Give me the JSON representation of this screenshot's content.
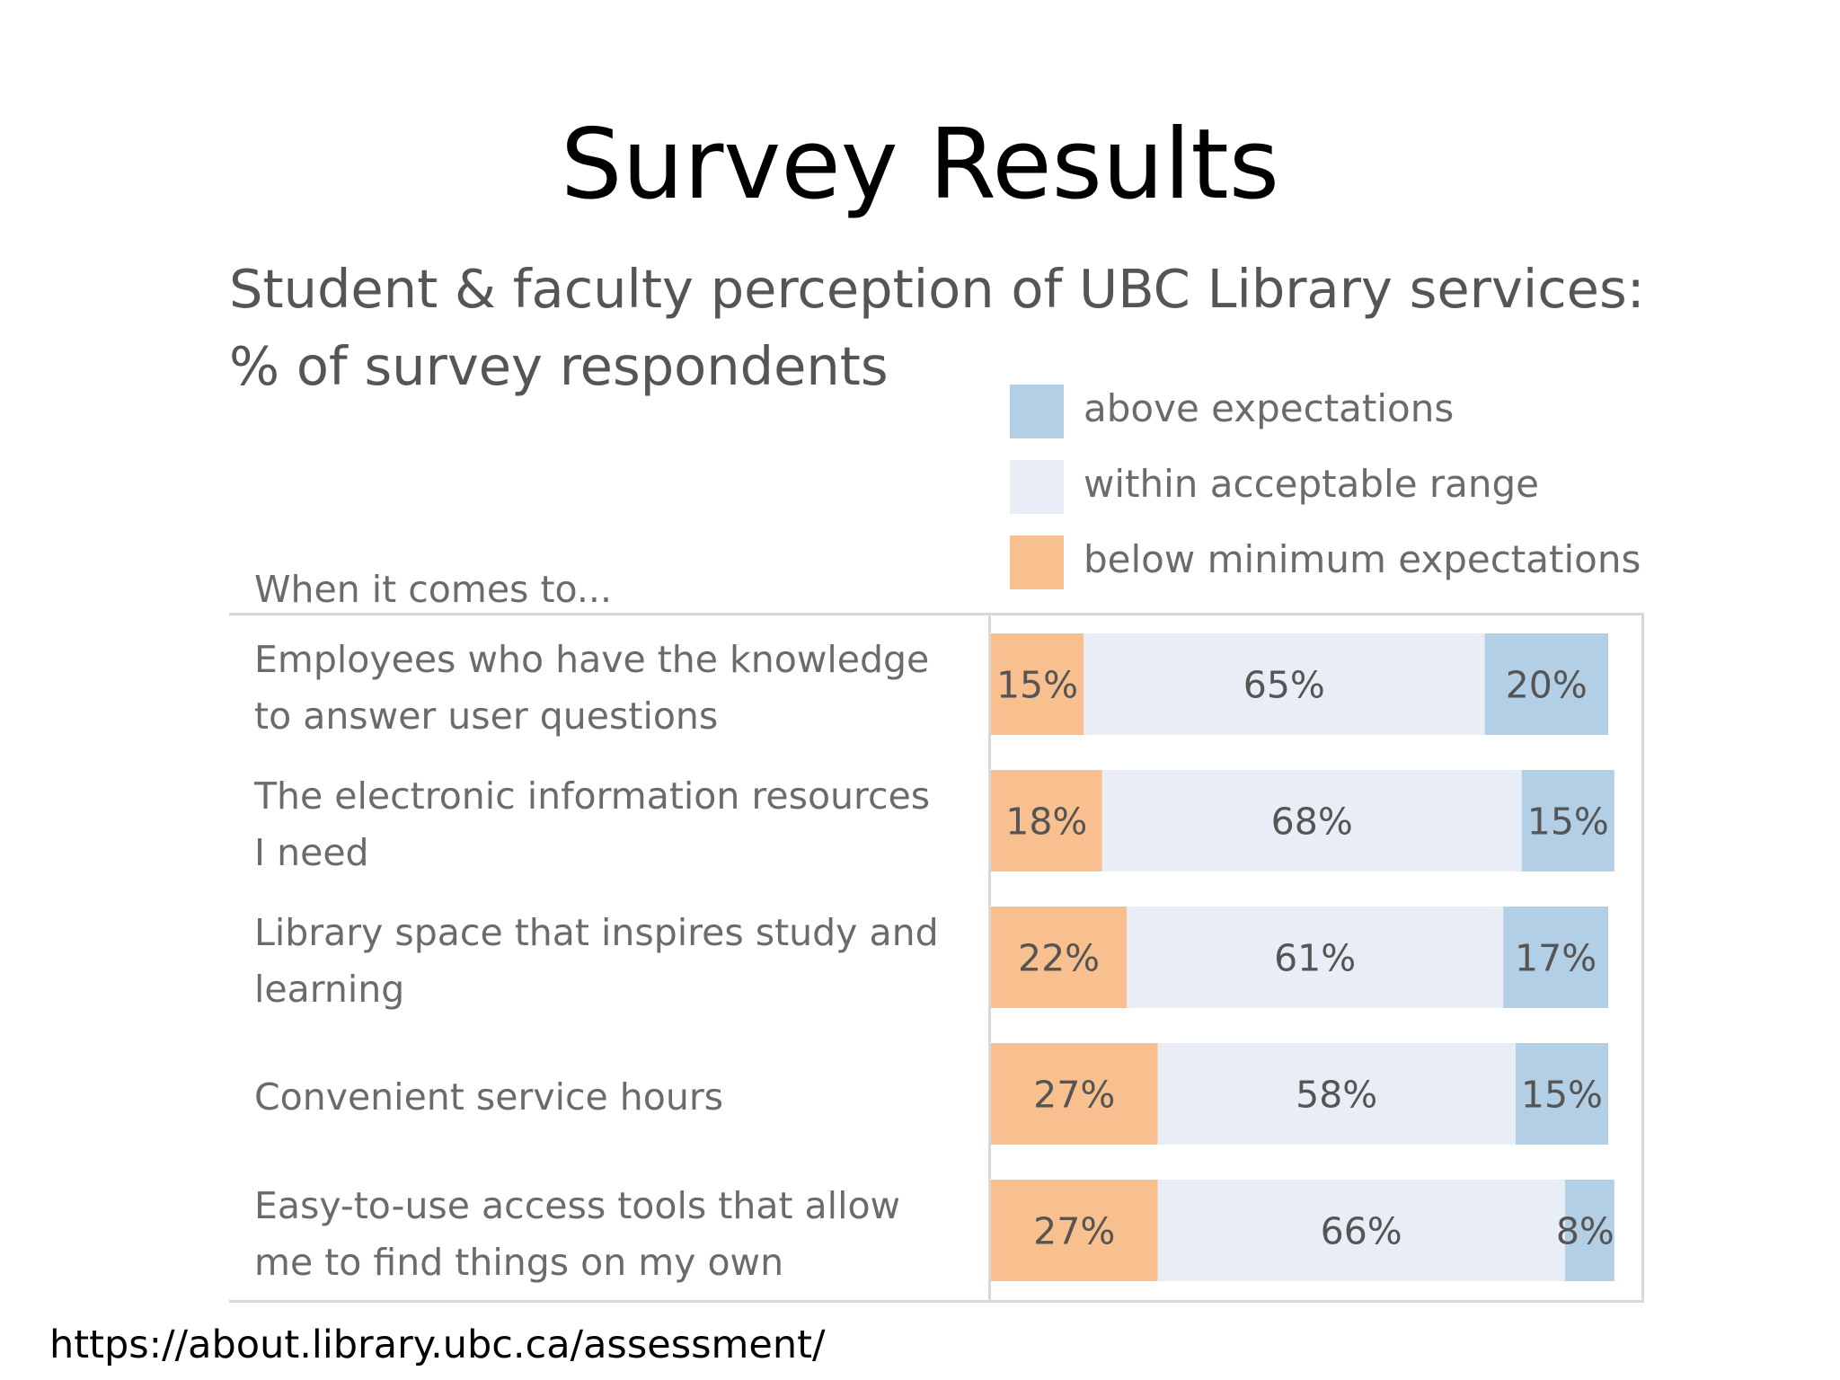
{
  "slide": {
    "title": "Survey Results",
    "source_url": "https://about.library.ubc.ca/assessment/"
  },
  "chart_data": {
    "type": "bar",
    "stacked": true,
    "orientation": "horizontal",
    "title_line1": "Student & faculty perception of UBC Library services:",
    "title_line2": "% of survey respondents",
    "row_header": "When it comes to...",
    "value_format": "percent",
    "xlim": [
      0,
      100
    ],
    "grid": false,
    "legend_position": "top-right",
    "legend": [
      {
        "key": "above",
        "label": "above expectations",
        "color": "#b3cfe6"
      },
      {
        "key": "within",
        "label": "within acceptable range",
        "color": "#e9edf6"
      },
      {
        "key": "below",
        "label": "below minimum expectations",
        "color": "#f7c08e"
      }
    ],
    "categories": [
      {
        "line1": "Employees who have the knowledge",
        "line2": "to answer user questions"
      },
      {
        "line1": "The electronic information resources",
        "line2": "I need"
      },
      {
        "line1": "Library space that inspires study and",
        "line2": "learning"
      },
      {
        "line1": "Convenient service hours",
        "line2": ""
      },
      {
        "line1": "Easy-to-use access tools that allow",
        "line2": "me to find things on my own"
      }
    ],
    "series": [
      {
        "key": "below",
        "name": "below minimum expectations",
        "color": "#f7c08e",
        "values": [
          15,
          18,
          22,
          27,
          27
        ]
      },
      {
        "key": "within",
        "name": "within acceptable range",
        "color": "#e9edf6",
        "values": [
          65,
          68,
          61,
          58,
          66
        ]
      },
      {
        "key": "above",
        "name": "above expectations",
        "color": "#b3cfe6",
        "values": [
          20,
          15,
          17,
          15,
          8
        ]
      }
    ],
    "label_color": "#555555"
  }
}
